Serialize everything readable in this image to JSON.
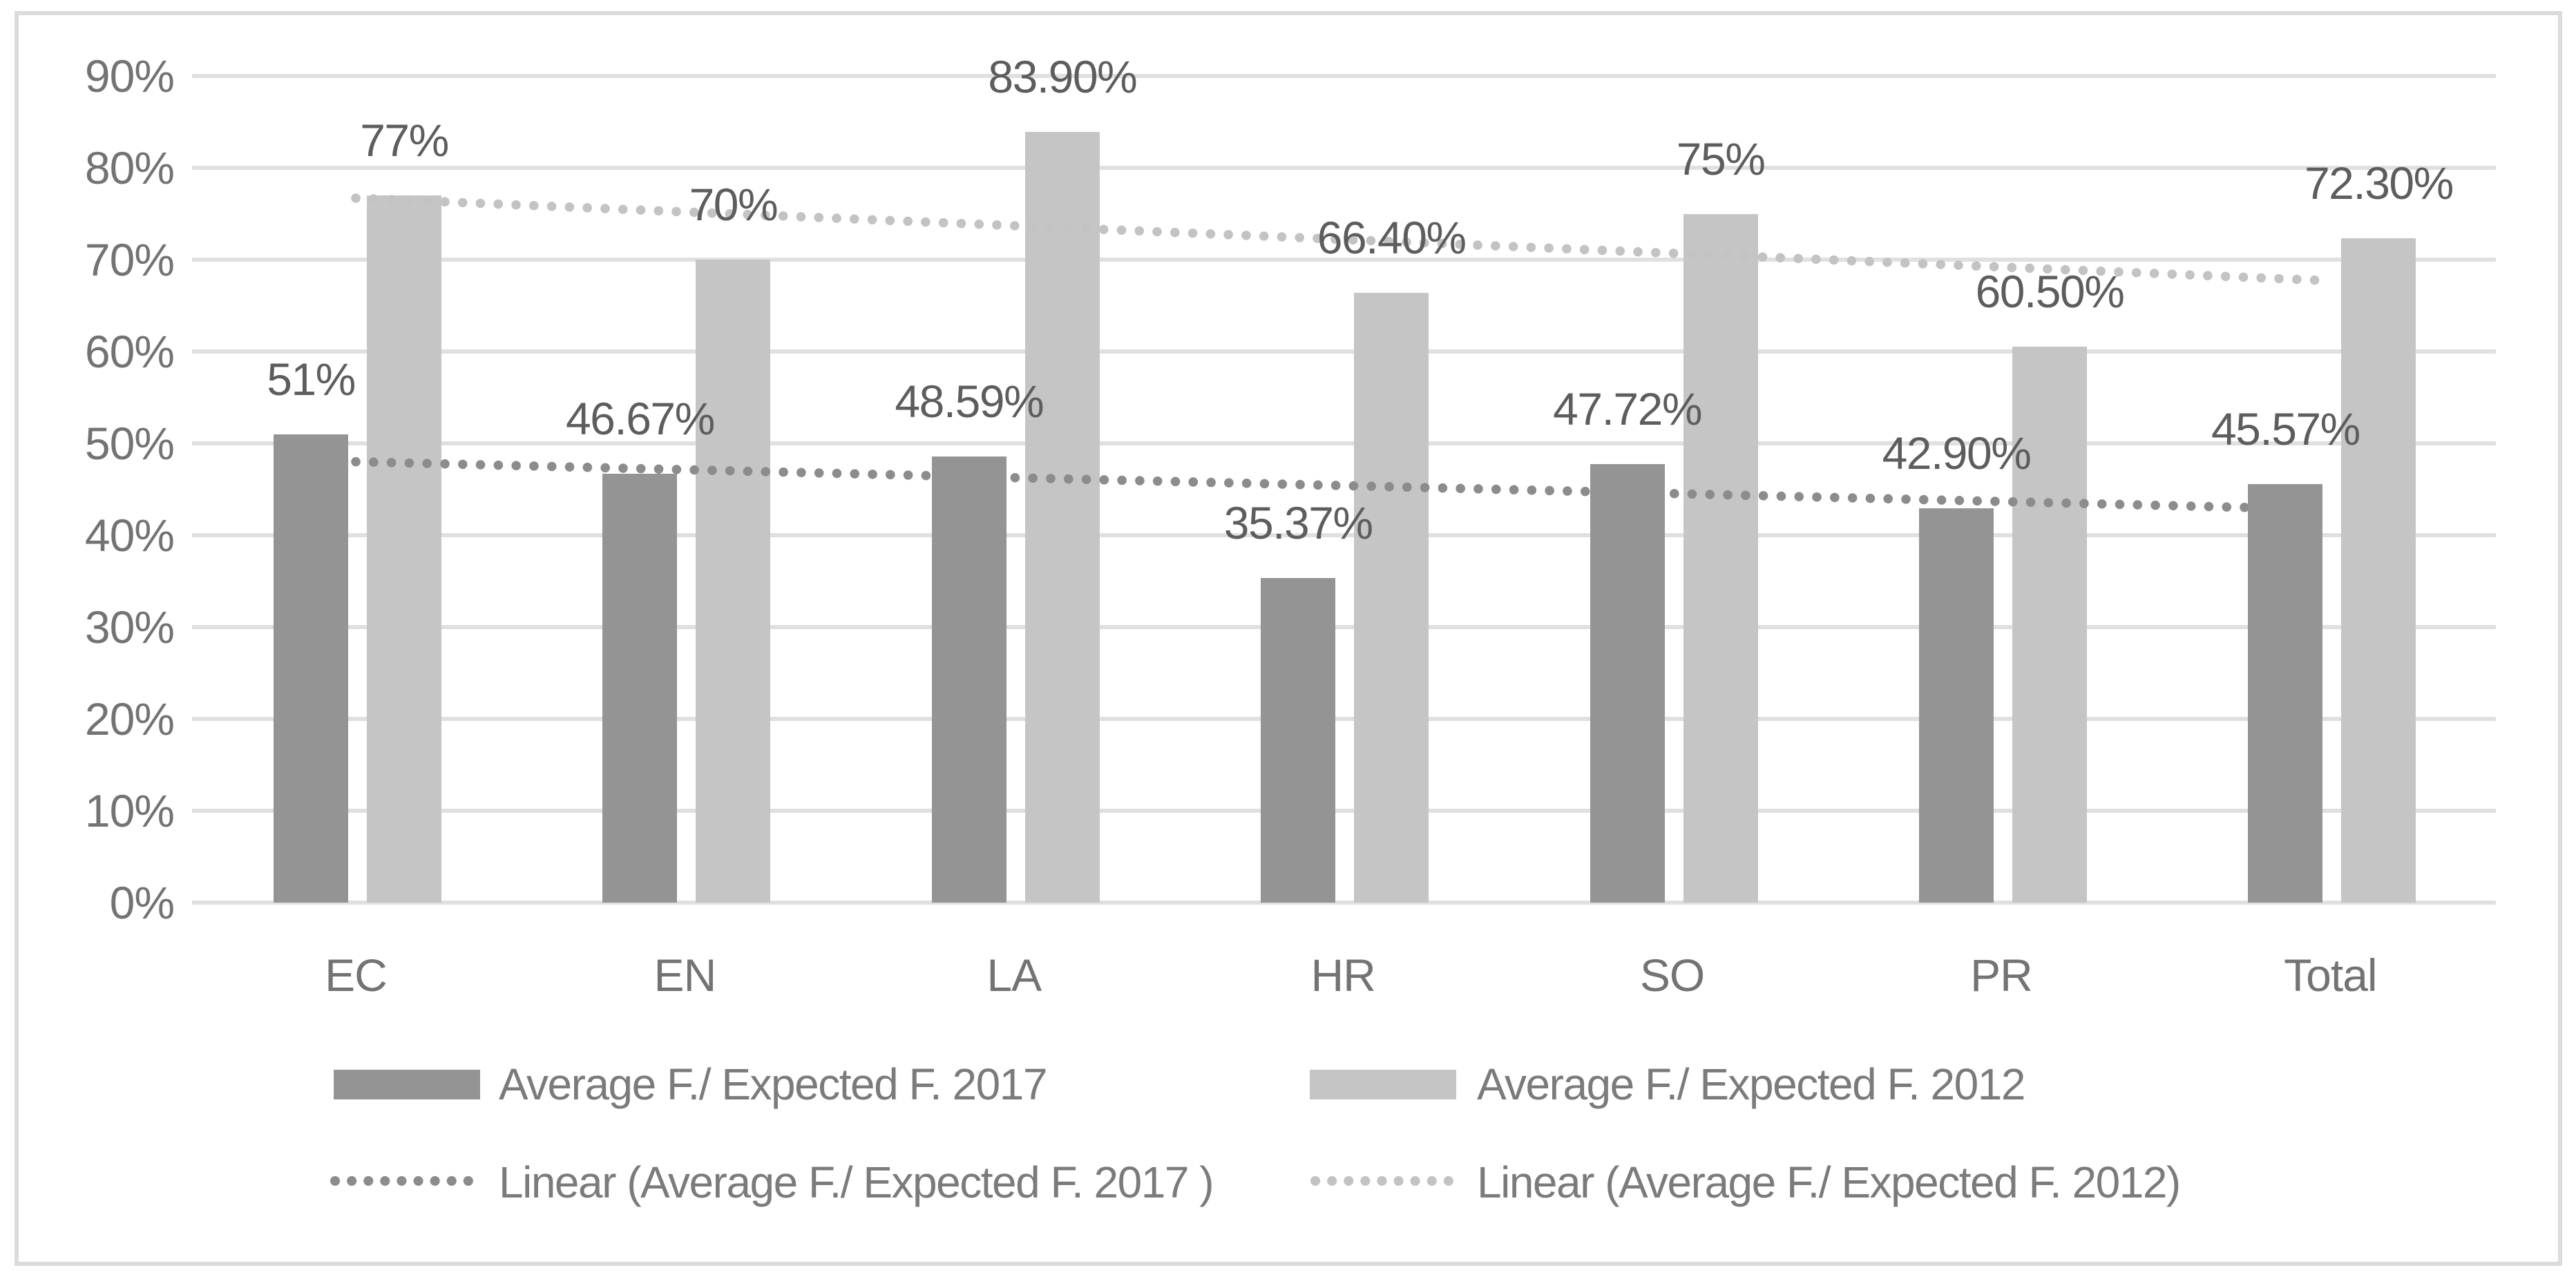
{
  "chart_data": {
    "type": "bar",
    "title": "",
    "categories": [
      "EC",
      "EN",
      "LA",
      "HR",
      "SO",
      "PR",
      "Total"
    ],
    "series": [
      {
        "name": "Average F./ Expected F. 2017",
        "color": "#949494",
        "values": [
          51,
          46.67,
          48.59,
          35.37,
          47.72,
          42.9,
          45.57
        ],
        "data_labels": [
          "51%",
          "46.67%",
          "48.59%",
          "35.37%",
          "47.72%",
          "42.90%",
          "45.57%"
        ]
      },
      {
        "name": "Average F./ Expected F. 2012",
        "color": "#c5c5c5",
        "values": [
          77,
          70,
          83.9,
          66.4,
          75,
          60.5,
          72.3
        ],
        "data_labels": [
          "77%",
          "70%",
          "83.90%",
          "66.40%",
          "75%",
          "60.50%",
          "72.30%"
        ]
      }
    ],
    "trendlines": [
      {
        "name": "Linear (Average F./ Expected F. 2017 )",
        "color": "#8c8c8c",
        "start_value": 48.0,
        "end_value": 42.8
      },
      {
        "name": "Linear (Average F./ Expected F. 2012)",
        "color": "#c3c3c3",
        "start_value": 76.7,
        "end_value": 67.7
      }
    ],
    "y_axis": {
      "min": 0,
      "max": 90,
      "tick_labels": [
        "0%",
        "10%",
        "20%",
        "30%",
        "40%",
        "50%",
        "60%",
        "70%",
        "80%",
        "90%"
      ],
      "grid": true
    },
    "legend": {
      "position": "bottom"
    },
    "colors": {
      "gridline": "#e0e0e0",
      "axis_text": "#737373",
      "data_label_text": "#5d5d5d",
      "legend_text": "#7b7b7b",
      "chart_border": "#dbdbdb",
      "background": "#ffffff"
    }
  }
}
